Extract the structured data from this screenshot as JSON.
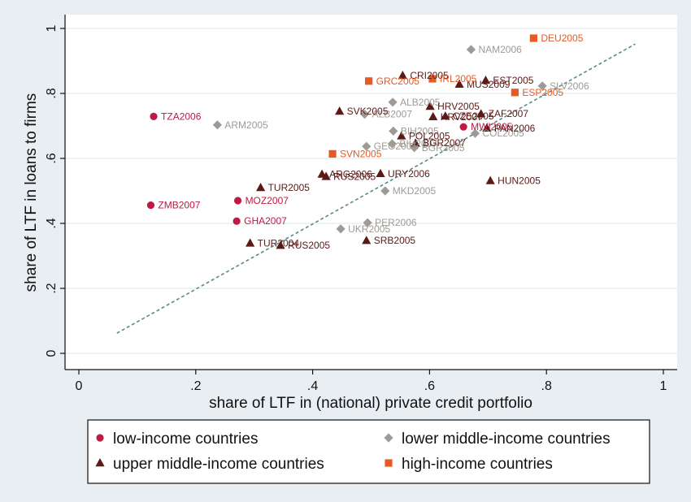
{
  "chart_data": {
    "type": "scatter",
    "xlabel": "share of LTF in (national) private credit portfolio",
    "ylabel": "share of LTF in loans to firms",
    "xlim": [
      0,
      1
    ],
    "ylim": [
      0,
      1
    ],
    "x_ticks": [
      0,
      0.2,
      0.4,
      0.6,
      0.8,
      1
    ],
    "y_ticks": [
      0,
      0.2,
      0.4,
      0.6,
      0.8,
      1
    ],
    "x_tick_labels": [
      "0",
      ".2",
      ".4",
      ".6",
      ".8",
      "1"
    ],
    "y_tick_labels": [
      "0",
      ".2",
      ".4",
      ".6",
      ".8",
      "1"
    ],
    "grid": true,
    "legend_position": "bottom",
    "fit_line": {
      "x": [
        0.065,
        0.952
      ],
      "y": [
        0.062,
        0.952
      ],
      "color": "#5b8a86"
    },
    "series": [
      {
        "name": "low-income countries",
        "marker": "circle",
        "color": "#be1a44",
        "points": [
          {
            "label": "TZA2006",
            "x": 0.128,
            "y": 0.729
          },
          {
            "label": "ZMB2007",
            "x": 0.123,
            "y": 0.456
          },
          {
            "label": "MOZ2007",
            "x": 0.272,
            "y": 0.47
          },
          {
            "label": "GHA2007",
            "x": 0.27,
            "y": 0.407
          },
          {
            "label": "MWI2005",
            "x": 0.658,
            "y": 0.697
          }
        ]
      },
      {
        "name": "lower middle-income countries",
        "marker": "diamond",
        "color": "#9f9a95",
        "points": [
          {
            "label": "ARM2005",
            "x": 0.237,
            "y": 0.703
          },
          {
            "label": "NAM2006",
            "x": 0.671,
            "y": 0.935
          },
          {
            "label": "SLV2006",
            "x": 0.793,
            "y": 0.823
          },
          {
            "label": "ALB2005",
            "x": 0.537,
            "y": 0.773
          },
          {
            "label": "ALB2007",
            "x": 0.489,
            "y": 0.736
          },
          {
            "label": "BIH2005",
            "x": 0.538,
            "y": 0.684
          },
          {
            "label": "BIH2007",
            "x": 0.536,
            "y": 0.645
          },
          {
            "label": "COL2005",
            "x": 0.678,
            "y": 0.677
          },
          {
            "label": "GEO2005",
            "x": 0.492,
            "y": 0.637
          },
          {
            "label": "BGR2005",
            "x": 0.574,
            "y": 0.633
          },
          {
            "label": "MKD2005",
            "x": 0.524,
            "y": 0.5
          },
          {
            "label": "PER2006",
            "x": 0.494,
            "y": 0.402
          },
          {
            "label": "UKR2005",
            "x": 0.448,
            "y": 0.383
          }
        ]
      },
      {
        "name": "upper middle-income countries",
        "marker": "triangle",
        "color": "#5a1a16",
        "points": [
          {
            "label": "CRI2005",
            "x": 0.554,
            "y": 0.855
          },
          {
            "label": "EST2005",
            "x": 0.696,
            "y": 0.84
          },
          {
            "label": "MUS2009",
            "x": 0.651,
            "y": 0.828
          },
          {
            "label": "SVK2005",
            "x": 0.446,
            "y": 0.745
          },
          {
            "label": "HRV2005",
            "x": 0.601,
            "y": 0.76
          },
          {
            "label": "HRV2007",
            "x": 0.606,
            "y": 0.728
          },
          {
            "label": "CZE2005",
            "x": 0.627,
            "y": 0.73
          },
          {
            "label": "ZAF2007",
            "x": 0.688,
            "y": 0.737
          },
          {
            "label": "PAN2006",
            "x": 0.698,
            "y": 0.693
          },
          {
            "label": "POL2005",
            "x": 0.552,
            "y": 0.669
          },
          {
            "label": "BGR2007",
            "x": 0.576,
            "y": 0.647
          },
          {
            "label": "TUR2005",
            "x": 0.311,
            "y": 0.51
          },
          {
            "label": "ARG2006",
            "x": 0.416,
            "y": 0.551
          },
          {
            "label": "RUS2005",
            "x": 0.423,
            "y": 0.544
          },
          {
            "label": "URY2006",
            "x": 0.516,
            "y": 0.553
          },
          {
            "label": "HUN2005",
            "x": 0.704,
            "y": 0.531
          },
          {
            "label": "TUR2004",
            "x": 0.293,
            "y": 0.339
          },
          {
            "label": "RUS2005",
            "x": 0.345,
            "y": 0.332
          },
          {
            "label": "SRB2005",
            "x": 0.492,
            "y": 0.347
          }
        ]
      },
      {
        "name": "high-income countries",
        "marker": "square",
        "color": "#e85a24",
        "points": [
          {
            "label": "DEU2005",
            "x": 0.778,
            "y": 0.97
          },
          {
            "label": "GRC2005",
            "x": 0.496,
            "y": 0.838
          },
          {
            "label": "IRL2005",
            "x": 0.605,
            "y": 0.845
          },
          {
            "label": "ESP2005",
            "x": 0.746,
            "y": 0.803
          },
          {
            "label": "SVN2005",
            "x": 0.434,
            "y": 0.614
          }
        ]
      }
    ]
  }
}
